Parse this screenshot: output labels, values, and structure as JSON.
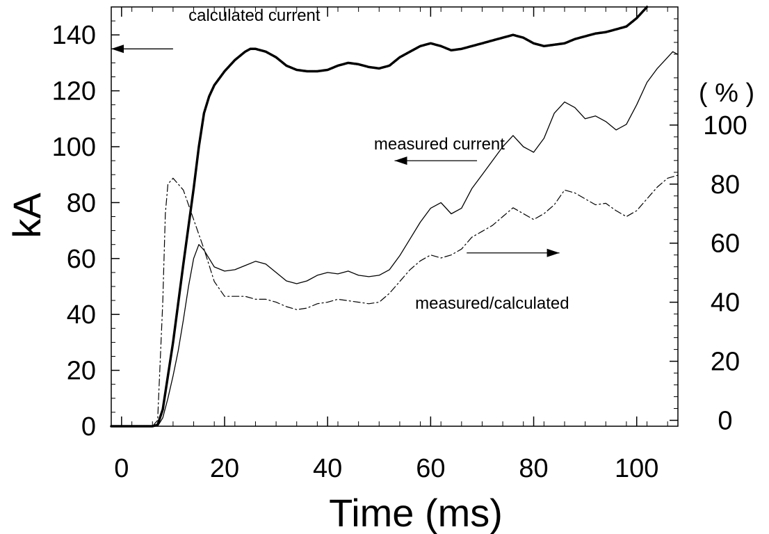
{
  "chart_data": {
    "type": "line",
    "title": "",
    "xlabel": "Time (ms)",
    "ylabel": "kA",
    "y2label": "( % )",
    "xlim": [
      -2,
      108
    ],
    "ylim": [
      0,
      150
    ],
    "y2lim": [
      -2,
      140
    ],
    "x_ticks": [
      0,
      20,
      40,
      60,
      80,
      100
    ],
    "y_ticks": [
      0,
      20,
      40,
      60,
      80,
      100,
      120,
      140
    ],
    "y2_ticks": [
      0,
      20,
      40,
      60,
      80,
      100
    ],
    "grid": false,
    "legend": "none",
    "series": [
      {
        "name": "calculated current",
        "axis": "left",
        "style": "heavy-dotted",
        "points": [
          [
            -2,
            0
          ],
          [
            6,
            0
          ],
          [
            7,
            0.5
          ],
          [
            8,
            6
          ],
          [
            10,
            30
          ],
          [
            12,
            58
          ],
          [
            14,
            85
          ],
          [
            15,
            100
          ],
          [
            16,
            112
          ],
          [
            17,
            118
          ],
          [
            18,
            122
          ],
          [
            20,
            127
          ],
          [
            22,
            131
          ],
          [
            24,
            134
          ],
          [
            25,
            135
          ],
          [
            26,
            135
          ],
          [
            28,
            134
          ],
          [
            30,
            132
          ],
          [
            32,
            129
          ],
          [
            34,
            127.5
          ],
          [
            36,
            127
          ],
          [
            38,
            127
          ],
          [
            40,
            127.5
          ],
          [
            42,
            129
          ],
          [
            44,
            130
          ],
          [
            46,
            129.5
          ],
          [
            48,
            128.5
          ],
          [
            50,
            128
          ],
          [
            52,
            129
          ],
          [
            54,
            132
          ],
          [
            56,
            134
          ],
          [
            58,
            136
          ],
          [
            60,
            137
          ],
          [
            62,
            136
          ],
          [
            64,
            134.5
          ],
          [
            66,
            135
          ],
          [
            68,
            136
          ],
          [
            70,
            137
          ],
          [
            72,
            138
          ],
          [
            74,
            139
          ],
          [
            76,
            140
          ],
          [
            78,
            139
          ],
          [
            80,
            137
          ],
          [
            82,
            136
          ],
          [
            84,
            136.5
          ],
          [
            86,
            137
          ],
          [
            88,
            138.5
          ],
          [
            90,
            139.5
          ],
          [
            92,
            140.5
          ],
          [
            94,
            141
          ],
          [
            96,
            142
          ],
          [
            98,
            143
          ],
          [
            100,
            146
          ],
          [
            102,
            150
          ]
        ]
      },
      {
        "name": "measured current",
        "axis": "left",
        "style": "solid",
        "points": [
          [
            -2,
            0
          ],
          [
            7,
            0
          ],
          [
            8,
            3
          ],
          [
            9,
            10
          ],
          [
            10,
            18
          ],
          [
            11,
            27
          ],
          [
            12,
            38
          ],
          [
            13,
            50
          ],
          [
            14,
            60
          ],
          [
            15,
            65
          ],
          [
            16,
            63
          ],
          [
            17,
            60
          ],
          [
            18,
            57
          ],
          [
            20,
            55.5
          ],
          [
            22,
            56
          ],
          [
            24,
            57.5
          ],
          [
            26,
            59
          ],
          [
            28,
            58
          ],
          [
            30,
            55
          ],
          [
            32,
            52
          ],
          [
            34,
            51
          ],
          [
            36,
            52
          ],
          [
            38,
            54
          ],
          [
            40,
            55
          ],
          [
            42,
            54.5
          ],
          [
            44,
            55.5
          ],
          [
            46,
            54
          ],
          [
            48,
            53.5
          ],
          [
            50,
            54
          ],
          [
            52,
            56
          ],
          [
            54,
            61
          ],
          [
            56,
            67
          ],
          [
            58,
            73
          ],
          [
            60,
            78
          ],
          [
            62,
            80
          ],
          [
            64,
            76
          ],
          [
            66,
            78
          ],
          [
            68,
            85
          ],
          [
            70,
            90
          ],
          [
            72,
            95
          ],
          [
            74,
            100
          ],
          [
            76,
            104
          ],
          [
            78,
            100
          ],
          [
            80,
            98
          ],
          [
            82,
            103
          ],
          [
            84,
            112
          ],
          [
            86,
            116
          ],
          [
            88,
            114
          ],
          [
            90,
            110
          ],
          [
            92,
            111
          ],
          [
            94,
            109
          ],
          [
            96,
            106
          ],
          [
            98,
            108
          ],
          [
            100,
            115
          ],
          [
            102,
            123
          ],
          [
            104,
            128
          ],
          [
            106,
            132
          ],
          [
            107,
            134
          ],
          [
            108,
            133
          ]
        ]
      },
      {
        "name": "measured/calculated",
        "axis": "right",
        "style": "dash-dot",
        "points": [
          [
            -2,
            -2
          ],
          [
            6,
            -2
          ],
          [
            7,
            0
          ],
          [
            8,
            40
          ],
          [
            8.5,
            70
          ],
          [
            9,
            80
          ],
          [
            10,
            82
          ],
          [
            12,
            78
          ],
          [
            14,
            68
          ],
          [
            16,
            58
          ],
          [
            18,
            47
          ],
          [
            20,
            42
          ],
          [
            22,
            42
          ],
          [
            24,
            42
          ],
          [
            26,
            41
          ],
          [
            28,
            41
          ],
          [
            30,
            40
          ],
          [
            32,
            38.5
          ],
          [
            34,
            37.5
          ],
          [
            36,
            38
          ],
          [
            38,
            39.5
          ],
          [
            40,
            40
          ],
          [
            42,
            41
          ],
          [
            44,
            40.5
          ],
          [
            46,
            40
          ],
          [
            48,
            39.5
          ],
          [
            50,
            40
          ],
          [
            52,
            43
          ],
          [
            54,
            47
          ],
          [
            56,
            51
          ],
          [
            58,
            54
          ],
          [
            60,
            56
          ],
          [
            62,
            55
          ],
          [
            64,
            56
          ],
          [
            66,
            58
          ],
          [
            68,
            62
          ],
          [
            70,
            64
          ],
          [
            72,
            66
          ],
          [
            74,
            69
          ],
          [
            76,
            72
          ],
          [
            78,
            70
          ],
          [
            80,
            68
          ],
          [
            82,
            70
          ],
          [
            84,
            73
          ],
          [
            86,
            78
          ],
          [
            88,
            77
          ],
          [
            90,
            75
          ],
          [
            92,
            73
          ],
          [
            94,
            73.5
          ],
          [
            96,
            71
          ],
          [
            98,
            69
          ],
          [
            100,
            71
          ],
          [
            102,
            75
          ],
          [
            104,
            79
          ],
          [
            106,
            82
          ],
          [
            108,
            83
          ]
        ]
      }
    ],
    "annotations": [
      {
        "id": "calc",
        "text": "calculated current",
        "x": 13,
        "y": 145,
        "arrow": {
          "from": [
            10,
            135
          ],
          "to": [
            -2,
            135
          ],
          "dir": "left"
        }
      },
      {
        "id": "meas",
        "text": "measured current",
        "x": 49,
        "y": 99,
        "arrow": {
          "from": [
            69,
            95
          ],
          "to": [
            53,
            95
          ],
          "dir": "left"
        }
      },
      {
        "id": "ratio",
        "text": "measured/calculated",
        "x": 57,
        "y": 42,
        "arrow": {
          "from": [
            67,
            62
          ],
          "to": [
            85,
            62
          ],
          "dir": "right"
        }
      }
    ]
  }
}
